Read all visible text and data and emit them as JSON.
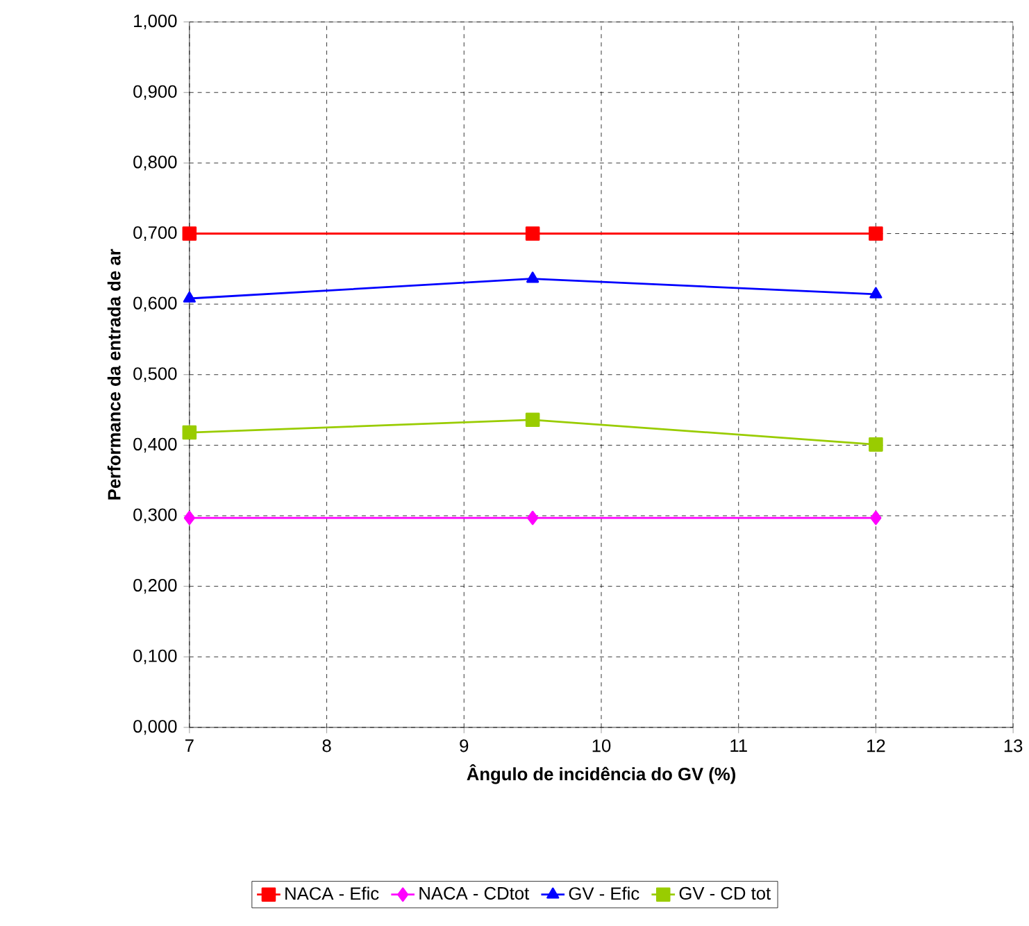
{
  "chart_data": {
    "type": "line",
    "xlabel": "Ângulo de incidência do GV (%)",
    "ylabel": "Performance da entrada de ar",
    "x": [
      7,
      9.5,
      12
    ],
    "series": [
      {
        "name": "NACA - Efic",
        "color": "#ff0000",
        "marker": "square",
        "values": [
          0.7,
          0.7,
          0.7
        ]
      },
      {
        "name": "NACA - CDtot",
        "color": "#ff00ff",
        "marker": "diamond",
        "values": [
          0.297,
          0.297,
          0.297
        ]
      },
      {
        "name": "GV - Efic",
        "color": "#0000ff",
        "marker": "triangle",
        "values": [
          0.608,
          0.636,
          0.614
        ]
      },
      {
        "name": "GV - CD tot",
        "color": "#99cc00",
        "marker": "square",
        "values": [
          0.418,
          0.436,
          0.401
        ]
      }
    ],
    "xlim": [
      7,
      13
    ],
    "xticks": [
      7,
      8,
      9,
      10,
      11,
      12,
      13
    ],
    "ylim": [
      0,
      1
    ],
    "yticks": [
      {
        "value": 0,
        "label": "0,000"
      },
      {
        "value": 0.1,
        "label": "0,100"
      },
      {
        "value": 0.2,
        "label": "0,200"
      },
      {
        "value": 0.3,
        "label": "0,300"
      },
      {
        "value": 0.4,
        "label": "0,400"
      },
      {
        "value": 0.5,
        "label": "0,500"
      },
      {
        "value": 0.6,
        "label": "0,600"
      },
      {
        "value": 0.7,
        "label": "0,700"
      },
      {
        "value": 0.8,
        "label": "0,800"
      },
      {
        "value": 0.9,
        "label": "0,900"
      },
      {
        "value": 1,
        "label": "1,000"
      }
    ],
    "grid": true,
    "legend": "bottom",
    "line_style": "solid"
  }
}
